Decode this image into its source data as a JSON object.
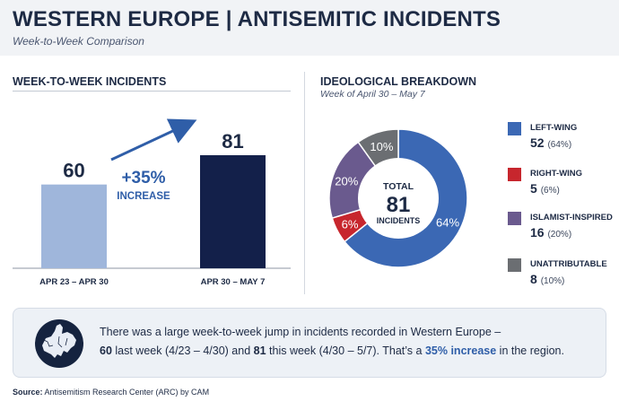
{
  "header": {
    "title": "WESTERN EUROPE | ANTISEMITIC INCIDENTS",
    "subtitle": "Week-to-Week Comparison"
  },
  "left_panel": {
    "title": "WEEK-TO-WEEK INCIDENTS",
    "change_value": "+35%",
    "change_label": "INCREASE"
  },
  "right_panel": {
    "title": "IDEOLOGICAL BREAKDOWN",
    "subtitle": "Week of April 30 – May 7",
    "center_label_top": "TOTAL",
    "center_value": "81",
    "center_label_bottom": "INCIDENTS"
  },
  "legend": [
    {
      "label": "LEFT-WING",
      "value": "52",
      "pct": "(64%)",
      "color": "#3b68b4"
    },
    {
      "label": "RIGHT-WING",
      "value": "5",
      "pct": "(6%)",
      "color": "#c7262d"
    },
    {
      "label": "ISLAMIST-INSPIRED",
      "value": "16",
      "pct": "(20%)",
      "color": "#6a5a8e"
    },
    {
      "label": "UNATTRIBUTABLE",
      "value": "8",
      "pct": "(10%)",
      "color": "#6b6e72"
    }
  ],
  "callout": {
    "line1": "There was a large week-to-week jump in incidents recorded in Western Europe –",
    "n1": "60",
    "t2": " last week (4/23 – 4/30) and ",
    "n2": "81",
    "t3": " this week (4/30 – 5/7). That’s a ",
    "highlight": "35% increase",
    "t4": " in the region."
  },
  "source": {
    "label": "Source:",
    "text": " Antisemitism Research Center (ARC) by CAM"
  },
  "chart_data": [
    {
      "type": "bar",
      "title": "WEEK-TO-WEEK INCIDENTS",
      "categories": [
        "APR 23 – APR 30",
        "APR 30 – MAY 7"
      ],
      "values": [
        60,
        81
      ],
      "colors": [
        "#9fb6db",
        "#13204a"
      ],
      "annotation": "+35% INCREASE",
      "ylim": [
        0,
        100
      ]
    },
    {
      "type": "pie",
      "title": "IDEOLOGICAL BREAKDOWN",
      "subtitle": "Week of April 30 – May 7",
      "center": {
        "total": 81
      },
      "labels": [
        "LEFT-WING",
        "RIGHT-WING",
        "ISLAMIST-INSPIRED",
        "UNATTRIBUTABLE"
      ],
      "values": [
        52,
        5,
        16,
        8
      ],
      "slice_labels": [
        "64%",
        "6%",
        "20%",
        "10%"
      ],
      "colors": [
        "#3b68b4",
        "#c7262d",
        "#6a5a8e",
        "#6b6e72"
      ]
    }
  ]
}
